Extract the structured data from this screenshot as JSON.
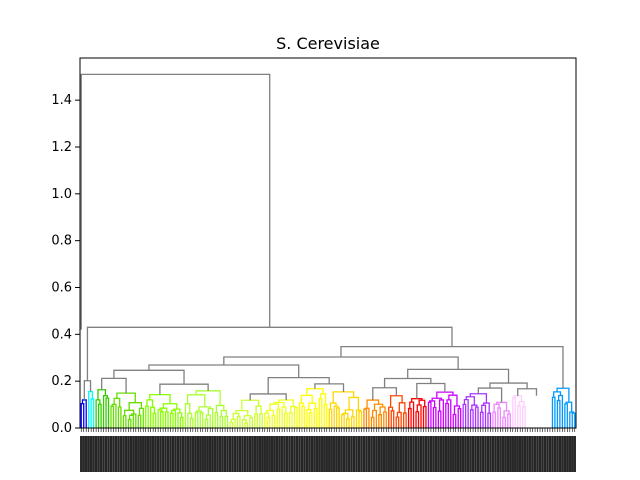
{
  "chart_data": {
    "type": "dendrogram",
    "title": "S. Cerevisiae",
    "xlabel": "",
    "ylabel": "",
    "ylim": [
      0,
      1.58
    ],
    "yticks": [
      "0.0",
      "0.2",
      "0.4",
      "0.6",
      "0.8",
      "1.0",
      "1.2",
      "1.4"
    ],
    "ytick_values": [
      0.0,
      0.2,
      0.4,
      0.6,
      0.8,
      1.0,
      1.2,
      1.4
    ],
    "color_threshold": 0.2,
    "leaf_count": 200,
    "above_threshold_color": "#808080",
    "top_merges": [
      {
        "left": 0,
        "right": 1,
        "height": 1.51
      },
      {
        "left": 0,
        "right": 1,
        "height": 0.43
      },
      {
        "left": 0,
        "right": 1,
        "height": 0.41
      },
      {
        "left": 0,
        "right": 1,
        "height": 0.4
      },
      {
        "left": 0,
        "right": 1,
        "height": 0.38
      },
      {
        "left": 0,
        "right": 1,
        "height": 0.35
      }
    ],
    "cluster_palette": [
      "#0000ff",
      "#00ffff",
      "#33cc00",
      "#66dd00",
      "#88ff00",
      "#aaff33",
      "#ccff33",
      "#eeff22",
      "#ffff00",
      "#ffd700",
      "#ff8c00",
      "#ff4500",
      "#ff0000",
      "#cc00ff",
      "#aa33ff",
      "#ee88ff",
      "#ffccff",
      "#ffffff",
      "#0099ff"
    ]
  }
}
